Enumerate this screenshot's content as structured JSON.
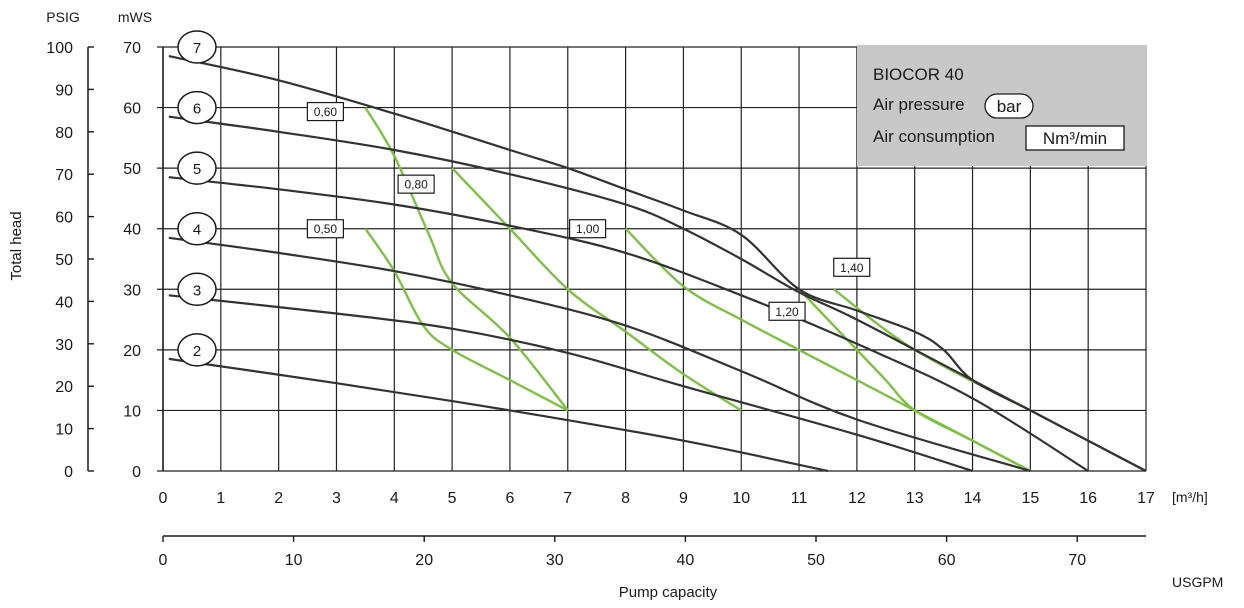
{
  "chart_data": {
    "type": "line",
    "title": "BIOCOR 40",
    "legend": {
      "title": "BIOCOR 40",
      "air_pressure_label": "Air pressure",
      "air_pressure_unit": "bar",
      "air_consumption_label": "Air consumption",
      "air_consumption_unit": "Nm³/min",
      "placement": "top-right",
      "background": "#c8c8c8"
    },
    "xlabel": "Pump capacity",
    "ylabel": "Total head",
    "x_unit_primary": "[m³/h]",
    "x_unit_secondary": "USGPM",
    "y_unit_primary": "mWS",
    "y_unit_secondary": "PSIG",
    "xlim": [
      0,
      17
    ],
    "ylim": [
      0,
      70
    ],
    "x_ticks": [
      "0",
      "1",
      "2",
      "3",
      "4",
      "5",
      "6",
      "7",
      "8",
      "9",
      "10",
      "11",
      "12",
      "13",
      "14",
      "15",
      "16",
      "17"
    ],
    "y_ticks": [
      "0",
      "10",
      "20",
      "30",
      "40",
      "50",
      "60",
      "70"
    ],
    "usgpm_ticks": [
      "0",
      "10",
      "20",
      "30",
      "40",
      "50",
      "60",
      "70"
    ],
    "psig_ticks": [
      "0",
      "10",
      "20",
      "30",
      "40",
      "50",
      "60",
      "70",
      "80",
      "90",
      "100"
    ],
    "grid": true,
    "colors": {
      "pressure_curves": "#333333",
      "consumption_curves": "#7dc242",
      "grid": "#222222"
    },
    "series": [
      {
        "name": "2",
        "kind": "air-pressure",
        "points": [
          [
            0.1,
            18.5
          ],
          [
            3,
            14.5
          ],
          [
            6,
            10
          ],
          [
            9,
            5
          ],
          [
            11.5,
            0
          ]
        ]
      },
      {
        "name": "3",
        "kind": "air-pressure",
        "points": [
          [
            0.1,
            29
          ],
          [
            3,
            26
          ],
          [
            5,
            23.5
          ],
          [
            7,
            19.5
          ],
          [
            9,
            14
          ],
          [
            12,
            6
          ],
          [
            14,
            0
          ]
        ]
      },
      {
        "name": "4",
        "kind": "air-pressure",
        "points": [
          [
            0.1,
            38.5
          ],
          [
            2,
            36
          ],
          [
            4,
            33
          ],
          [
            6,
            29
          ],
          [
            8,
            24
          ],
          [
            10,
            16.5
          ],
          [
            12,
            8.5
          ],
          [
            15,
            0
          ]
        ]
      },
      {
        "name": "5",
        "kind": "air-pressure",
        "points": [
          [
            0.1,
            48.5
          ],
          [
            2,
            46.5
          ],
          [
            4,
            44
          ],
          [
            6,
            40.5
          ],
          [
            8,
            36
          ],
          [
            10,
            29
          ],
          [
            12,
            21
          ],
          [
            14,
            12
          ],
          [
            16,
            0
          ]
        ]
      },
      {
        "name": "6",
        "kind": "air-pressure",
        "points": [
          [
            0.1,
            58.5
          ],
          [
            2,
            56
          ],
          [
            4,
            53
          ],
          [
            6,
            49
          ],
          [
            8,
            44
          ],
          [
            9,
            40
          ],
          [
            10,
            35
          ],
          [
            11,
            29.5
          ],
          [
            12,
            25
          ],
          [
            14,
            15
          ],
          [
            17,
            0
          ]
        ]
      },
      {
        "name": "7",
        "kind": "air-pressure",
        "points": [
          [
            0.1,
            68.5
          ],
          [
            2,
            64.5
          ],
          [
            4,
            59
          ],
          [
            6,
            53
          ],
          [
            7,
            50
          ],
          [
            8,
            46.5
          ],
          [
            9,
            43
          ],
          [
            10,
            39
          ],
          [
            11,
            30
          ],
          [
            12,
            26.5
          ],
          [
            13,
            23
          ],
          [
            13.5,
            20
          ],
          [
            14,
            15
          ],
          [
            15,
            10
          ],
          [
            16,
            5
          ],
          [
            17,
            0
          ]
        ]
      },
      {
        "name": "0,50",
        "kind": "air-consumption",
        "points": [
          [
            3.5,
            40
          ],
          [
            4,
            33
          ],
          [
            4.5,
            24
          ],
          [
            5,
            20
          ],
          [
            6,
            15
          ],
          [
            7,
            10
          ]
        ]
      },
      {
        "name": "0,60",
        "kind": "air-consumption",
        "points": [
          [
            3.5,
            60
          ],
          [
            4,
            52
          ],
          [
            4.6,
            39
          ],
          [
            5,
            31
          ],
          [
            6,
            22
          ],
          [
            7,
            10
          ]
        ]
      },
      {
        "name": "0,80",
        "kind": "air-consumption",
        "points": [
          [
            5,
            50
          ],
          [
            6,
            40
          ],
          [
            7,
            30
          ],
          [
            8,
            23
          ],
          [
            9,
            16
          ],
          [
            10,
            10
          ]
        ]
      },
      {
        "name": "1,00",
        "kind": "air-consumption",
        "points": [
          [
            8,
            40
          ],
          [
            9,
            30.5
          ],
          [
            10,
            25
          ],
          [
            11,
            20
          ],
          [
            12,
            15
          ],
          [
            13,
            10
          ],
          [
            15,
            0
          ]
        ]
      },
      {
        "name": "1,20",
        "kind": "air-consumption",
        "points": [
          [
            11,
            30
          ],
          [
            12,
            20
          ],
          [
            12.5,
            15
          ],
          [
            13,
            10
          ],
          [
            14,
            5
          ],
          [
            15,
            0
          ]
        ]
      },
      {
        "name": "1,40",
        "kind": "air-consumption",
        "points": [
          [
            11.6,
            30
          ],
          [
            13,
            20
          ],
          [
            15,
            10
          ]
        ]
      }
    ]
  }
}
